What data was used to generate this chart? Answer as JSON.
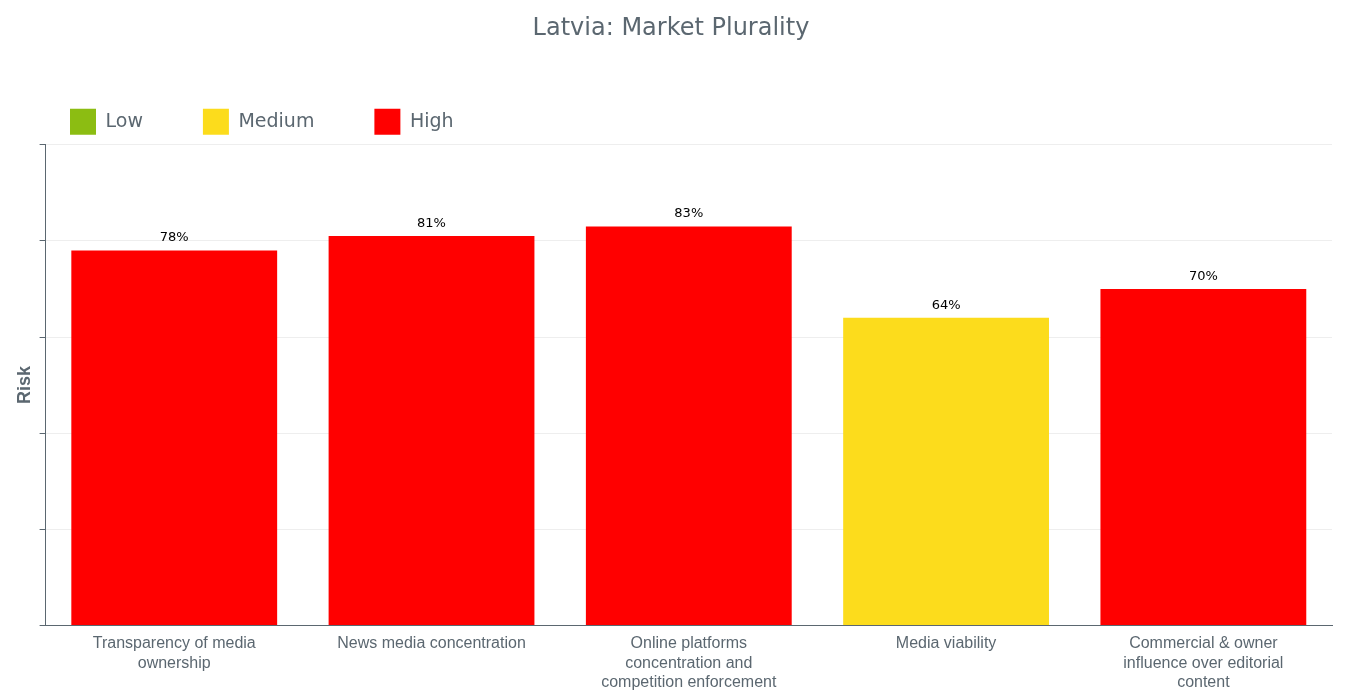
{
  "chart_data": {
    "type": "bar",
    "title": "Latvia: Market Plurality",
    "ylabel": "Risk",
    "categories": [
      "Transparency of media ownership",
      "News media concentration",
      "Online platforms concentration and competition enforcement",
      "Media viability",
      "Commercial & owner influence over editorial content"
    ],
    "stacked": true,
    "series": [
      {
        "name": "Low",
        "color": "#8cbd12",
        "values": [
          null,
          null,
          null,
          null,
          null
        ],
        "value_labels": [
          null,
          null,
          null,
          null,
          null
        ]
      },
      {
        "name": "Medium",
        "color": "#fcdc1c",
        "values": [
          null,
          null,
          null,
          64,
          null
        ],
        "value_labels": [
          null,
          null,
          null,
          "64%",
          null
        ]
      },
      {
        "name": "High",
        "color": "#ff0000",
        "values": [
          78,
          81,
          83,
          null,
          70
        ],
        "value_labels": [
          "78%",
          "81%",
          "83%",
          null,
          "70%"
        ]
      }
    ],
    "ylim": [
      0,
      100
    ],
    "yticks": [
      {
        "value": 0,
        "label": null
      },
      {
        "value": 20,
        "label": null
      },
      {
        "value": 40,
        "label": null
      },
      {
        "value": 60,
        "label": null
      },
      {
        "value": 80,
        "label": null
      },
      {
        "value": 100,
        "label": null
      }
    ],
    "tick_labels": "x",
    "grid": "y",
    "legend": "top left"
  }
}
